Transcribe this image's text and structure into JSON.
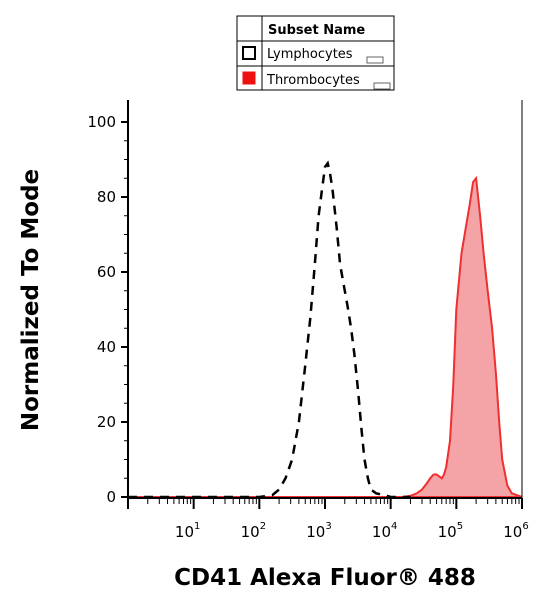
{
  "chart_data": {
    "type": "area",
    "xlabel": "CD41 Alexa Fluor® 488",
    "ylabel": "Normalized To Mode",
    "x_scale": "log",
    "xlim": [
      1,
      1000000
    ],
    "ylim": [
      0,
      100
    ],
    "x_ticks": [
      {
        "base": "10",
        "exp": "1"
      },
      {
        "base": "10",
        "exp": "2"
      },
      {
        "base": "10",
        "exp": "3"
      },
      {
        "base": "10",
        "exp": "4"
      },
      {
        "base": "10",
        "exp": "5"
      },
      {
        "base": "10",
        "exp": "6"
      }
    ],
    "y_ticks": [
      "0",
      "20",
      "40",
      "60",
      "80",
      "100"
    ],
    "grid": false,
    "legend": {
      "placement": "top-center",
      "header": "Subset Name",
      "entries": [
        "Lymphocytes",
        "Thrombocytes"
      ]
    },
    "series": [
      {
        "name": "Lymphocytes",
        "style": "dashed-outline",
        "color": "#000000",
        "x": [
          1,
          100,
          158,
          200,
          250,
          316,
          400,
          500,
          600,
          700,
          800,
          900,
          1000,
          1100,
          1200,
          1300,
          1500,
          1700,
          2000,
          2200,
          2500,
          2800,
          3200,
          3600,
          4000,
          4500,
          5000,
          6000,
          8000,
          10000,
          20000
        ],
        "y": [
          0,
          0,
          0.5,
          2,
          5,
          10,
          20,
          35,
          48,
          62,
          75,
          82,
          88,
          89,
          86,
          82,
          72,
          62,
          55,
          51,
          45,
          38,
          28,
          18,
          10,
          5,
          2,
          1,
          0.5,
          0,
          0
        ]
      },
      {
        "name": "Thrombocytes",
        "style": "filled",
        "color": "#ee3030",
        "fill": "#f4a3a6",
        "x": [
          1,
          15000,
          20000,
          25000,
          30000,
          35000,
          40000,
          45000,
          50000,
          55000,
          60000,
          65000,
          70000,
          80000,
          90000,
          100000,
          120000,
          140000,
          160000,
          180000,
          200000,
          230000,
          260000,
          300000,
          350000,
          400000,
          450000,
          500000,
          600000,
          700000,
          1000000
        ],
        "y": [
          0,
          0,
          0.3,
          1,
          2,
          3.5,
          5,
          6,
          6,
          5.5,
          5,
          6,
          8,
          15,
          30,
          50,
          65,
          72,
          78,
          84,
          85,
          75,
          65,
          55,
          45,
          33,
          20,
          10,
          3,
          1,
          0
        ]
      }
    ]
  }
}
